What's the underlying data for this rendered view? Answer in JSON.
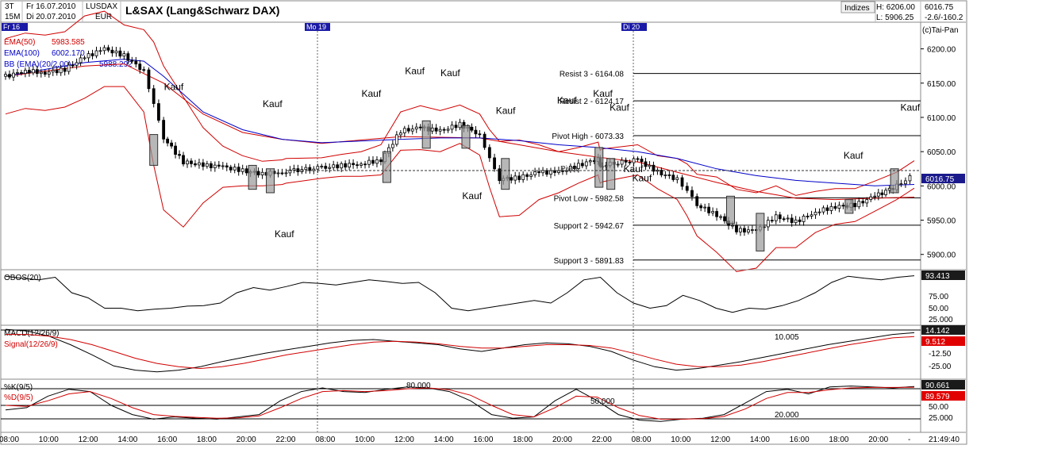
{
  "header": {
    "period": "3T",
    "interval": "15M",
    "date_from": "Fr 16.07.2010",
    "date_to": "Di 20.07.2010",
    "symbol": "LUSDAX",
    "currency": "EUR",
    "title": "L&SAX (Lang&Schwarz DAX)",
    "group_button": "Indizes",
    "high_label": "H: 6206.00",
    "low_label": "L: 5906.25",
    "last_price": "6016.75",
    "change": "-2.6/-160.2",
    "copyright": "(c)Tai-Pan"
  },
  "day_markers": [
    "Fr 16",
    "Mo 19",
    "Di 20"
  ],
  "legend": [
    {
      "label": "EMA(50)",
      "value": "5983.585",
      "color": "#d00000"
    },
    {
      "label": "EMA(100)",
      "value": "6002.170",
      "color": "#0000c8"
    },
    {
      "label": "BB (EMA)(20/2.00)",
      "value": "5988.292",
      "color": "#d00000"
    }
  ],
  "price_axis": [
    "6200.00",
    "6150.00",
    "6100.00",
    "6050.00",
    "6000.00",
    "5950.00",
    "5900.00"
  ],
  "levels": [
    {
      "label": "Resist 3 - 6164.08",
      "value": 6164.08
    },
    {
      "label": "Resist 2 - 6124.17",
      "value": 6124.17
    },
    {
      "label": "Pivot High - 6073.33",
      "value": 6073.33
    },
    {
      "label": "Pivot Low - 5982.58",
      "value": 5982.58
    },
    {
      "label": "Support 2 - 5942.67",
      "value": 5942.67
    },
    {
      "label": "Support 3 - 5891.83",
      "value": 5891.83
    }
  ],
  "pivot_label": "Pivot",
  "kauf_label": "Kauf",
  "obos": {
    "label": "OBOS(20)",
    "value": "93.413",
    "axis": [
      "75.00",
      "50.00",
      "25.000"
    ]
  },
  "macd": {
    "label_macd": "MACD(12/26/9)",
    "label_signal": "Signal(12/26/9)",
    "macd_value": "14.142",
    "signal_value": "9.512",
    "axis": [
      "-12.50",
      "-25.00"
    ],
    "annotation": "10.005"
  },
  "stoch": {
    "label_k": "%K(9/5)",
    "label_d": "%D(9/5)",
    "k_value": "90.661",
    "d_value": "89.579",
    "axis": [
      "50.00",
      "25.000"
    ],
    "annotations": [
      "80.000",
      "50.000",
      "20.000"
    ]
  },
  "time_axis": [
    "08:00",
    "10:00",
    "12:00",
    "14:00",
    "16:00",
    "18:00",
    "20:00",
    "22:00",
    "08:00",
    "10:00",
    "12:00",
    "14:00",
    "16:00",
    "18:00",
    "20:00",
    "22:00",
    "08:00",
    "10:00",
    "12:00",
    "14:00",
    "16:00",
    "18:00",
    "20:00",
    "-"
  ],
  "time_readout": "21:49:40",
  "chart_data": {
    "type": "line",
    "title": "L&SAX (Lang&Schwarz DAX)",
    "ylim": [
      5880,
      6225
    ],
    "x_hours": [
      8,
      10,
      12,
      14,
      16,
      18,
      20,
      22,
      32,
      34,
      36,
      38,
      40,
      42,
      44,
      46,
      56,
      58,
      60,
      62,
      64,
      66,
      68,
      69.8
    ],
    "price_series": [
      {
        "name": "price",
        "x": [
          8,
          9,
          10,
          11,
          12,
          13,
          14,
          15,
          15.5,
          16,
          17,
          18,
          19,
          20,
          21,
          22,
          23,
          32,
          33,
          34,
          35,
          36,
          37,
          38,
          39,
          40,
          40.5,
          41,
          42,
          43,
          44,
          45,
          46,
          46.5,
          47,
          56,
          57,
          58,
          58.5,
          59,
          60,
          61,
          62,
          63,
          64,
          65,
          66,
          67,
          68,
          69,
          69.8
        ],
        "y": [
          6160,
          6168,
          6165,
          6170,
          6188,
          6200,
          6190,
          6168,
          6120,
          6070,
          6035,
          6030,
          6028,
          6022,
          6018,
          6020,
          6022,
          6026,
          6030,
          6032,
          6038,
          6080,
          6085,
          6080,
          6090,
          6075,
          6040,
          6010,
          6012,
          6020,
          6020,
          6030,
          6040,
          6028,
          6030,
          6038,
          6020,
          6010,
          5994,
          5972,
          5958,
          5935,
          5935,
          5955,
          5948,
          5962,
          5970,
          5972,
          5985,
          6000,
          6016.75
        ]
      },
      {
        "name": "EMA(50)",
        "x": [
          8,
          12,
          14,
          16,
          18,
          20,
          22,
          32,
          36,
          40,
          42,
          44,
          46,
          56,
          58,
          60,
          62,
          64,
          66,
          68,
          69.8
        ],
        "y": [
          6160,
          6175,
          6178,
          6150,
          6105,
          6078,
          6068,
          6062,
          6072,
          6070,
          6060,
          6050,
          6042,
          6035,
          6020,
          6005,
          5992,
          5982,
          5980,
          5982,
          5983.585
        ]
      },
      {
        "name": "EMA(100)",
        "x": [
          8,
          12,
          14,
          15,
          16,
          18,
          20,
          22,
          32,
          36,
          38,
          40,
          42,
          44,
          46,
          56,
          58,
          60,
          62,
          64,
          66,
          68,
          69.8
        ],
        "y": [
          6160,
          6180,
          6185,
          6182,
          6160,
          6108,
          6082,
          6068,
          6063,
          6068,
          6070,
          6070,
          6066,
          6060,
          6056,
          6050,
          6040,
          6025,
          6015,
          6008,
          6004,
          6000,
          6002.17
        ]
      }
    ]
  }
}
